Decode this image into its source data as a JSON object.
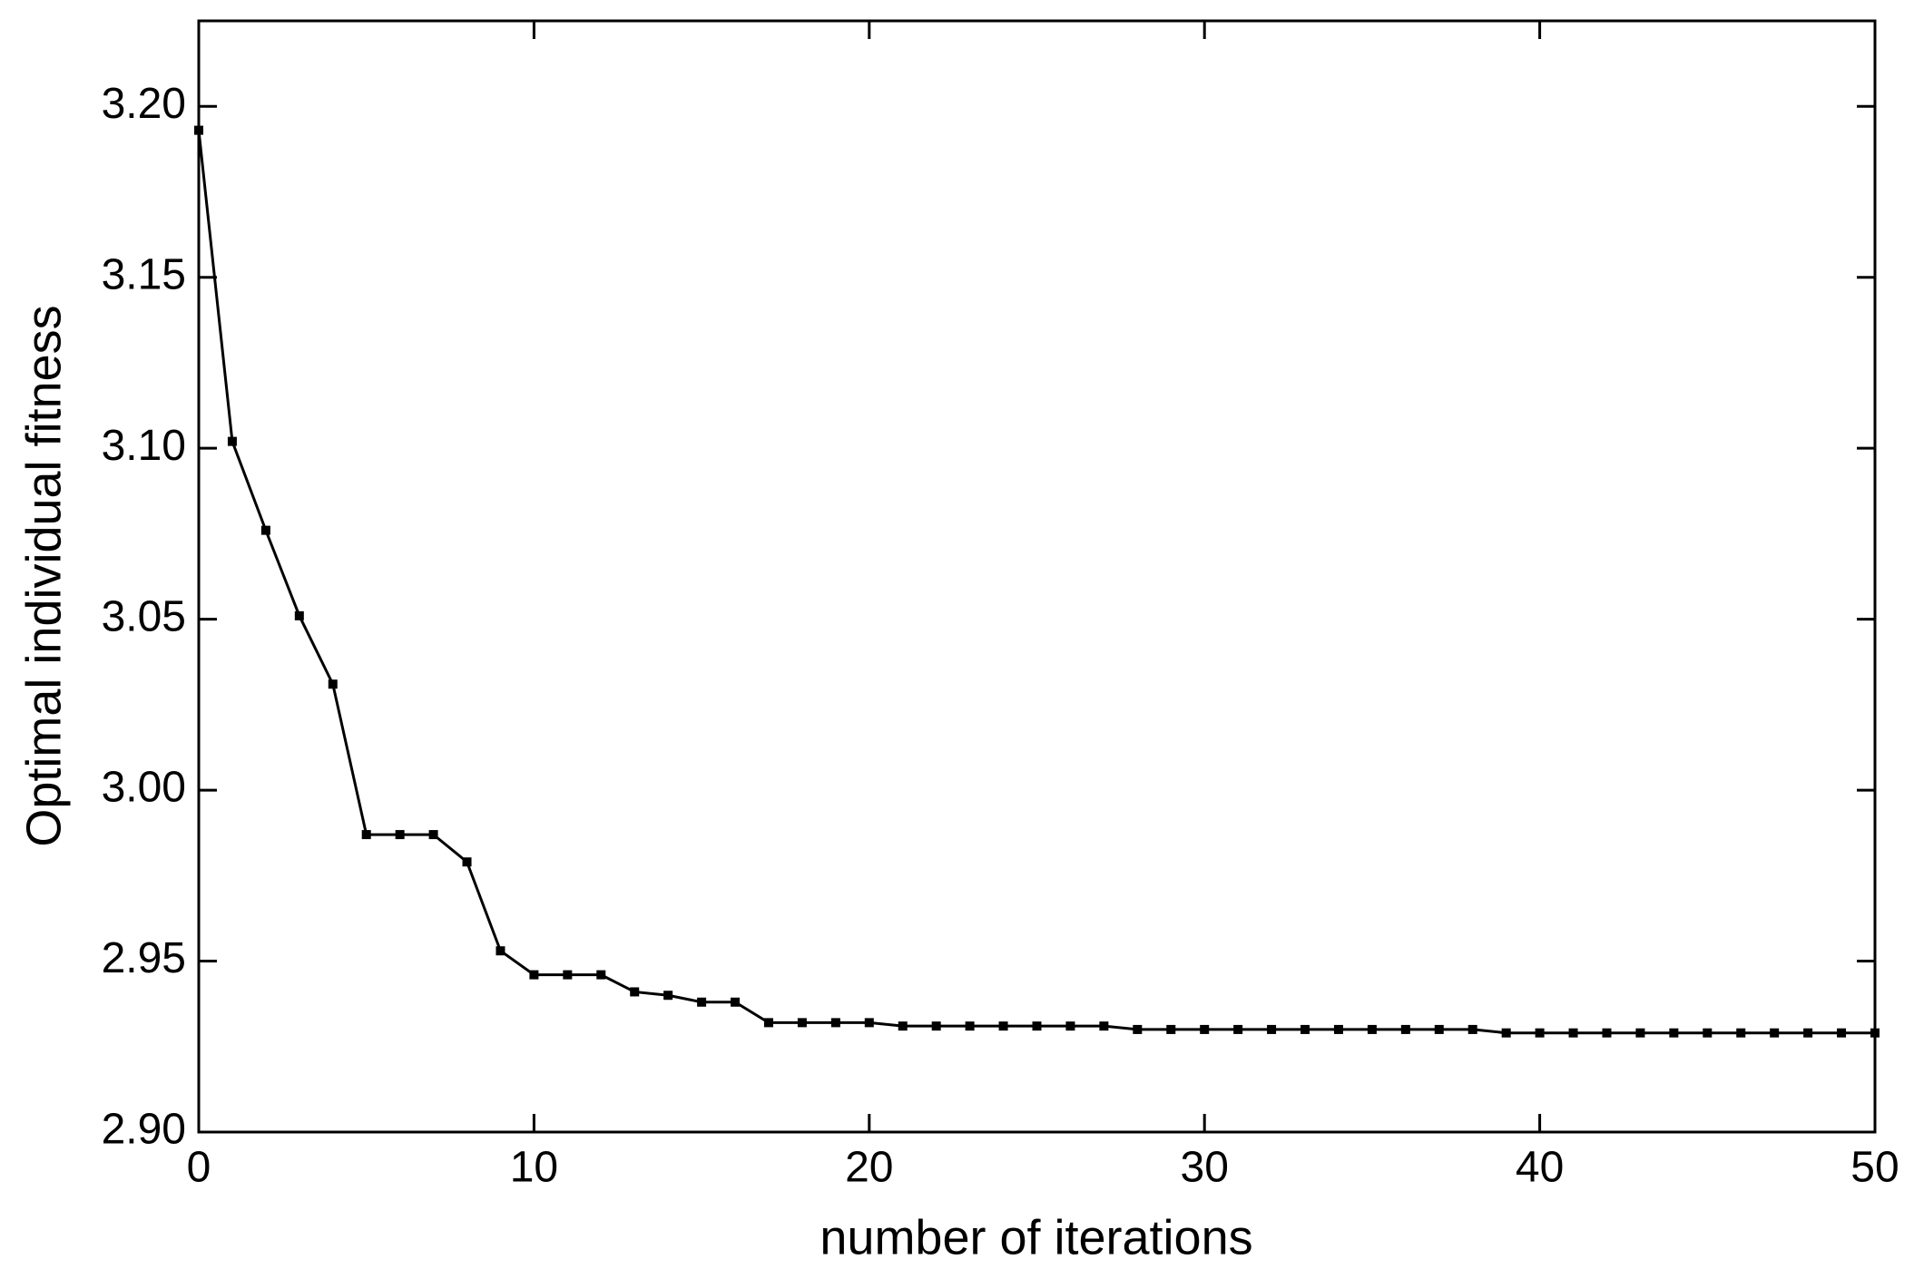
{
  "chart_data": {
    "type": "line",
    "xlabel": "number of iterations",
    "ylabel": "Optimal individual fitness",
    "x": [
      0,
      1,
      2,
      3,
      4,
      5,
      6,
      7,
      8,
      9,
      10,
      11,
      12,
      13,
      14,
      15,
      16,
      17,
      18,
      19,
      20,
      21,
      22,
      23,
      24,
      25,
      26,
      27,
      28,
      29,
      30,
      31,
      32,
      33,
      34,
      35,
      36,
      37,
      38,
      39,
      40,
      41,
      42,
      43,
      44,
      45,
      46,
      47,
      48,
      49,
      50
    ],
    "series": [
      {
        "color": "#000000",
        "values": [
          3.193,
          3.102,
          3.076,
          3.051,
          3.031,
          2.987,
          2.987,
          2.987,
          2.979,
          2.953,
          2.946,
          2.946,
          2.946,
          2.941,
          2.94,
          2.938,
          2.938,
          2.932,
          2.932,
          2.932,
          2.932,
          2.931,
          2.931,
          2.931,
          2.931,
          2.931,
          2.931,
          2.931,
          2.93,
          2.93,
          2.93,
          2.93,
          2.93,
          2.93,
          2.93,
          2.93,
          2.93,
          2.93,
          2.93,
          2.929,
          2.929,
          2.929,
          2.929,
          2.929,
          2.929,
          2.929,
          2.929,
          2.929,
          2.929,
          2.929,
          2.929
        ]
      }
    ],
    "xlim": [
      0,
      50
    ],
    "xticks": [
      0,
      10,
      20,
      30,
      40,
      50
    ],
    "ylim": [
      2.9,
      3.225
    ],
    "yticks": [
      {
        "value": 2.9,
        "label": "2.90"
      },
      {
        "value": 2.95,
        "label": "2.95"
      },
      {
        "value": 3.0,
        "label": "3.00"
      },
      {
        "value": 3.05,
        "label": "3.05"
      },
      {
        "value": 3.1,
        "label": "3.10"
      },
      {
        "value": 3.15,
        "label": "3.15"
      },
      {
        "value": 3.2,
        "label": "3.20"
      }
    ],
    "grid": false
  }
}
